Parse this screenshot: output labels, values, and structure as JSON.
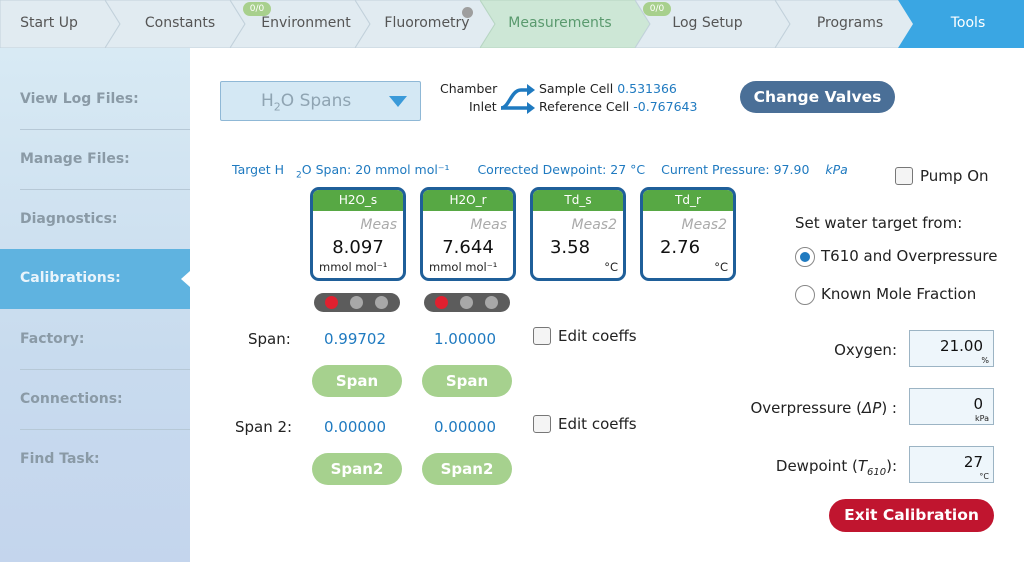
{
  "tabs": [
    {
      "label": "Start Up"
    },
    {
      "label": "Constants"
    },
    {
      "label": "Environment",
      "badge": "0/0"
    },
    {
      "label": "Fluorometry"
    },
    {
      "label": "Measurements"
    },
    {
      "label": "Log Setup",
      "badge": "0/0"
    },
    {
      "label": "Programs"
    },
    {
      "label": "Tools"
    }
  ],
  "colors": {
    "tab_bar": "#e1ebf1",
    "tab_green": "#cde7d6",
    "tab_active": "#3aa6e3",
    "accent_blue": "#1f7ac0",
    "tile_green": "#57a844",
    "button_green": "#a6d18e",
    "button_red": "#c0152f",
    "button_dark": "#4a6f97"
  },
  "sidebar": {
    "items": [
      {
        "label": "View Log Files:"
      },
      {
        "label": "Manage Files:"
      },
      {
        "label": "Diagnostics:"
      },
      {
        "label": "Calibrations:"
      },
      {
        "label": "Factory:"
      },
      {
        "label": "Connections:"
      },
      {
        "label": "Find Task:"
      }
    ],
    "active_index": 3
  },
  "dropdown": {
    "prefix": "H",
    "subscript": "2",
    "suffix": "O Spans"
  },
  "valves": {
    "chamber_label": "Chamber",
    "inlet_label": "Inlet",
    "sample_label": "Sample Cell",
    "sample_value": "0.531366",
    "reference_label": "Reference Cell",
    "reference_value": "-0.767643"
  },
  "change_valves_label": "Change Valves",
  "info": {
    "target_pre": "Target H",
    "target_sub": "2",
    "target_post": "O Span: 20 mmol mol⁻¹",
    "corrected_dewpoint": "Corrected Dewpoint: 27 °C",
    "pressure_label": "Current Pressure: 97.90 ",
    "pressure_unit": "kPa"
  },
  "pump": {
    "label": "Pump On",
    "checked": false
  },
  "water_target": {
    "heading": "Set water target from:",
    "options": [
      {
        "label": "T610 and Overpressure",
        "selected": true
      },
      {
        "label": "Known Mole Fraction",
        "selected": false
      }
    ]
  },
  "tiles": [
    {
      "title": "H2O_s",
      "sub": "Meas",
      "value": "8.097",
      "unit": "mmol mol⁻¹"
    },
    {
      "title": "H2O_r",
      "sub": "Meas",
      "value": "7.644",
      "unit": "mmol mol⁻¹"
    },
    {
      "title": "Td_s",
      "sub": "Meas2",
      "value": "3.58",
      "unit": "°C"
    },
    {
      "title": "Td_r",
      "sub": "Meas2",
      "value": "2.76",
      "unit": "°C"
    }
  ],
  "indicators": [
    {
      "lights": [
        "red",
        "off",
        "off"
      ]
    },
    {
      "lights": [
        "red",
        "off",
        "off"
      ]
    }
  ],
  "span": {
    "label": "Span:",
    "values": [
      "0.99702",
      "1.00000"
    ],
    "button_label": "Span",
    "edit_label": "Edit coeffs"
  },
  "span2": {
    "label": "Span 2:",
    "values": [
      "0.00000",
      "0.00000"
    ],
    "button_label": "Span2",
    "edit_label": "Edit coeffs"
  },
  "fields": {
    "oxygen": {
      "label": "Oxygen:",
      "value": "21.00",
      "unit": "%"
    },
    "overpressure": {
      "label_pre": "Overpressure (",
      "label_sym": "ΔP",
      "label_post": ") :",
      "value": "0",
      "unit": "kPa"
    },
    "dewpoint": {
      "label_pre": "Dewpoint (",
      "label_sym": "T",
      "label_sub": "610",
      "label_post": "):",
      "value": "27",
      "unit": "°C"
    }
  },
  "exit_label": "Exit Calibration"
}
